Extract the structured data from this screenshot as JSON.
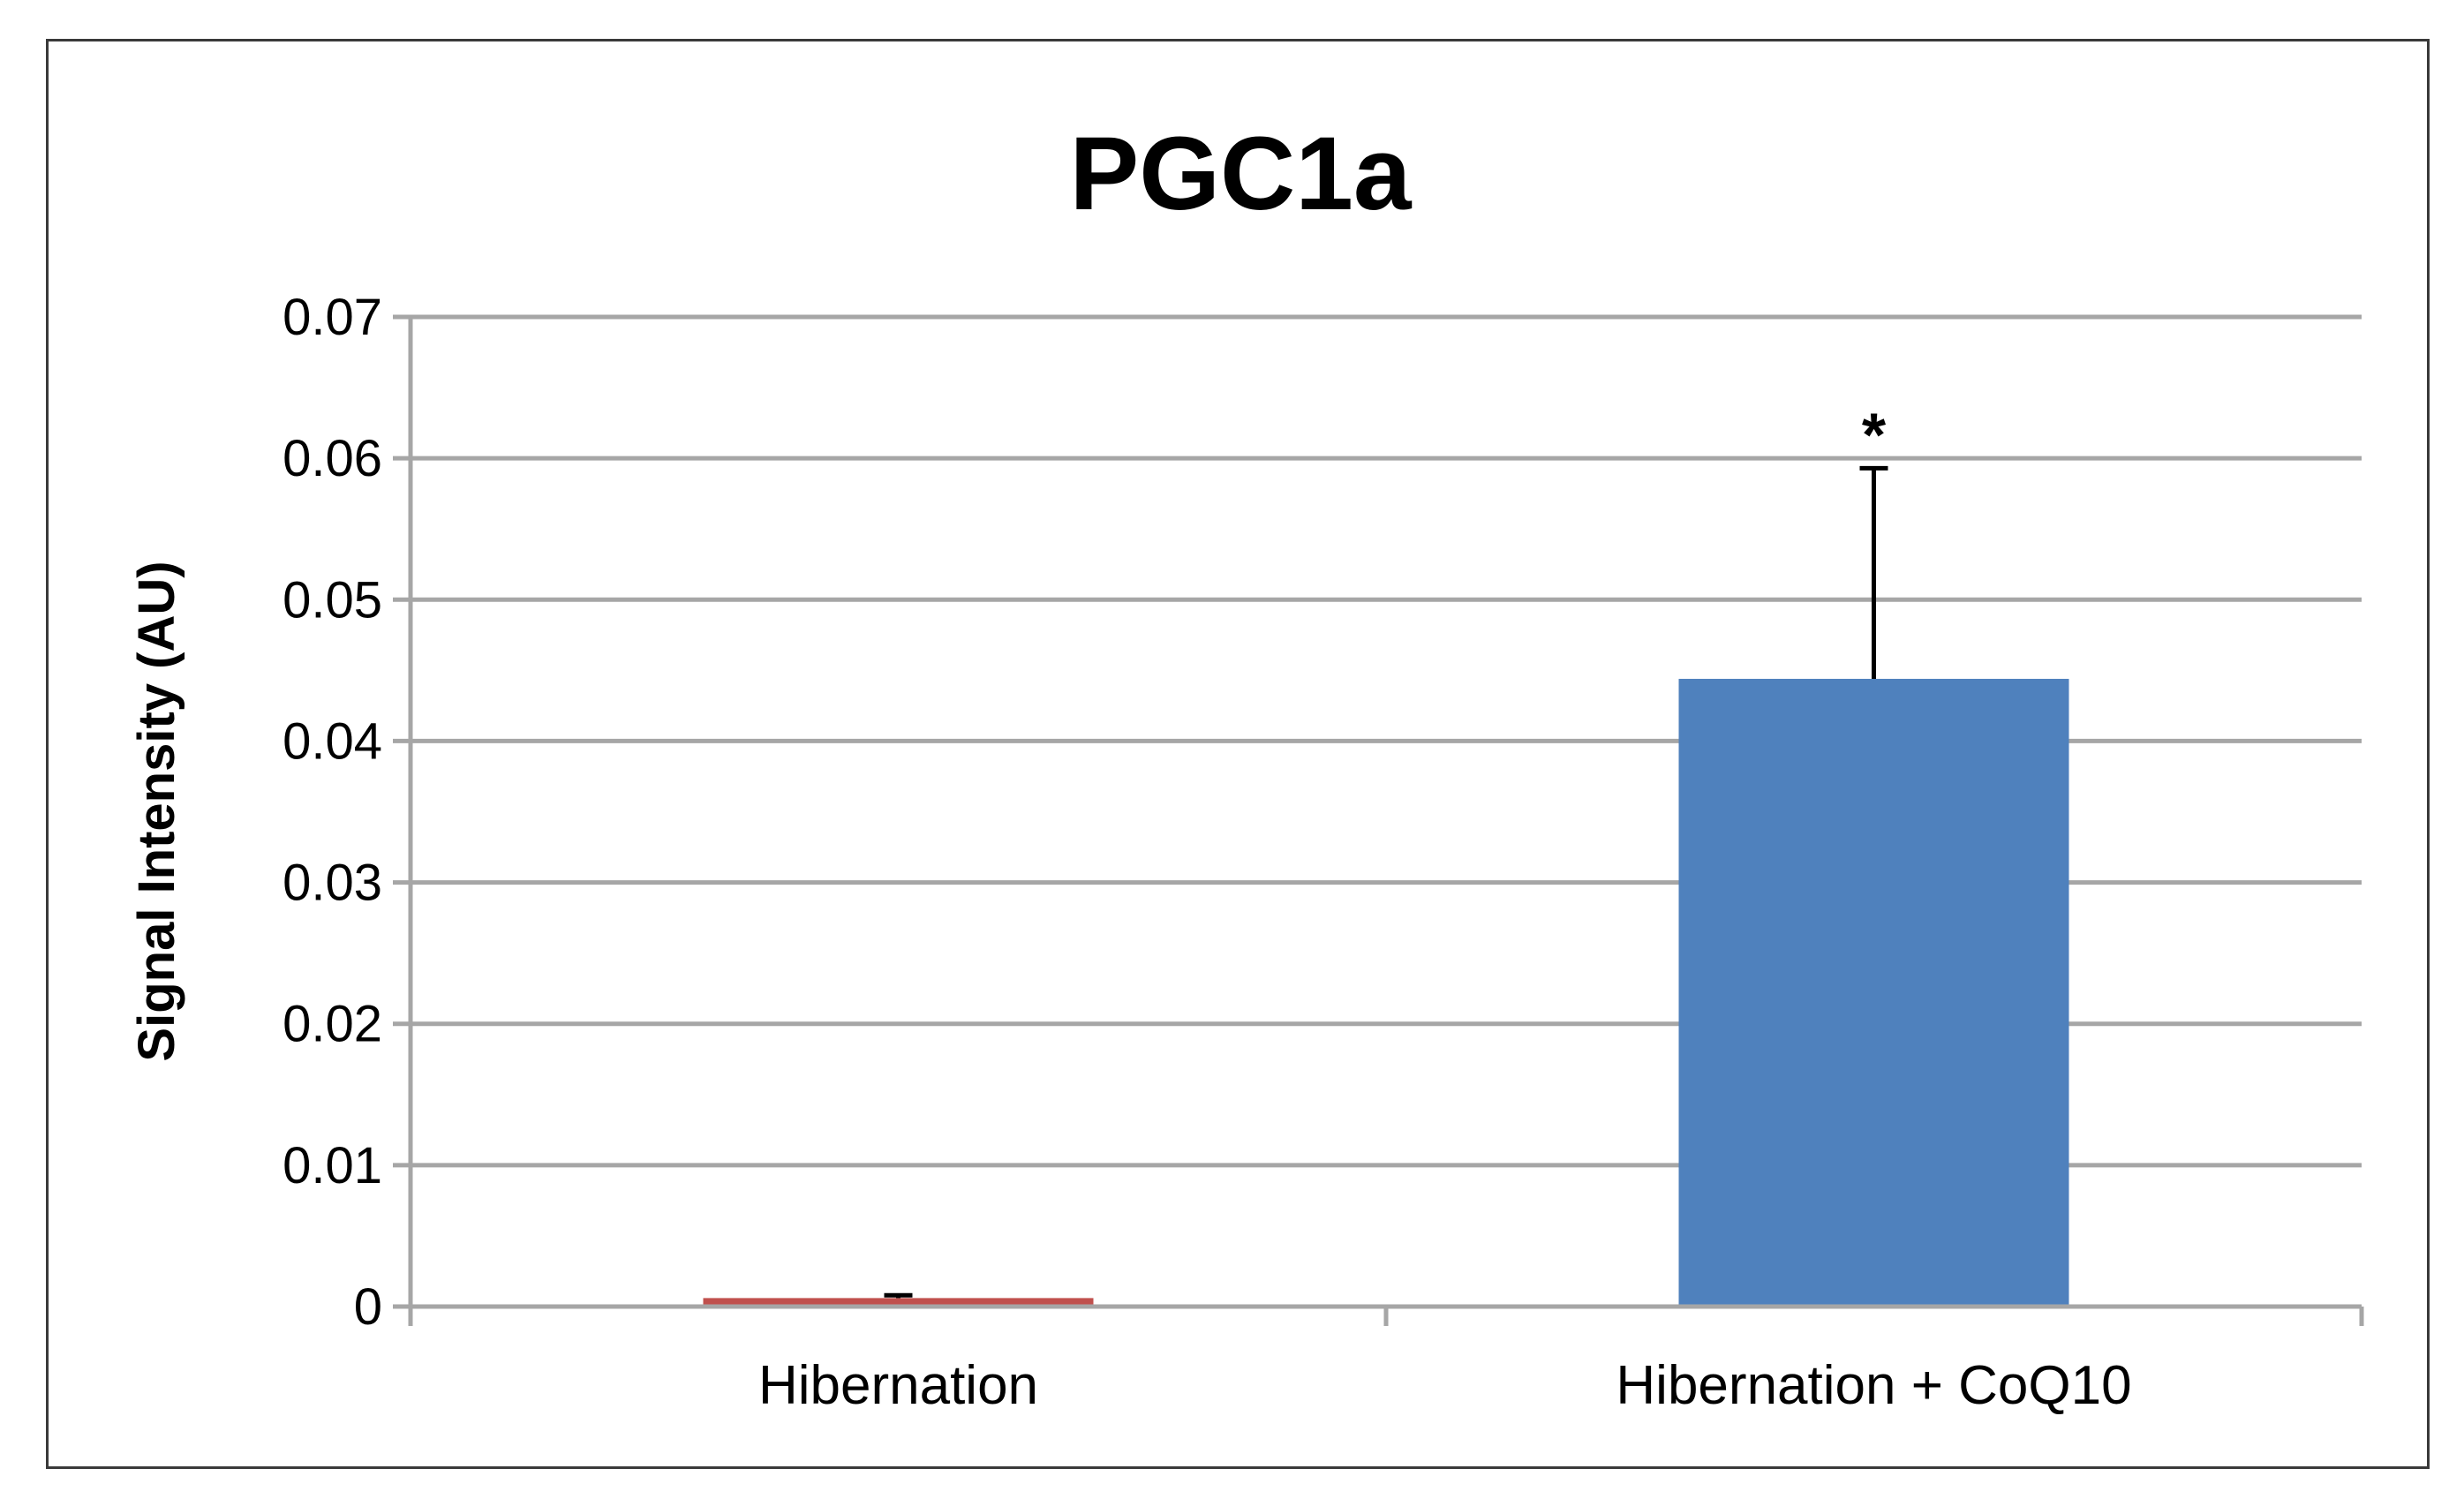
{
  "chart_data": {
    "type": "bar",
    "title": "PGC1a",
    "xlabel": "",
    "ylabel": "Signal Intensity (AU)",
    "ylim": [
      0,
      0.07
    ],
    "yticks": [
      0,
      0.01,
      0.02,
      0.03,
      0.04,
      0.05,
      0.06,
      0.07
    ],
    "ytick_labels": [
      "0",
      "0.01",
      "0.02",
      "0.03",
      "0.04",
      "0.05",
      "0.06",
      "0.07"
    ],
    "categories": [
      "Hibernation",
      "Hibernation + CoQ10"
    ],
    "values": [
      0.0006,
      0.0444
    ],
    "errors": [
      0.0002,
      0.0149
    ],
    "bar_colors": [
      "#c0504d",
      "#4f81bd"
    ],
    "annotations": [
      {
        "category": "Hibernation + CoQ10",
        "text": "*"
      }
    ],
    "grid": true,
    "legend": "none"
  }
}
